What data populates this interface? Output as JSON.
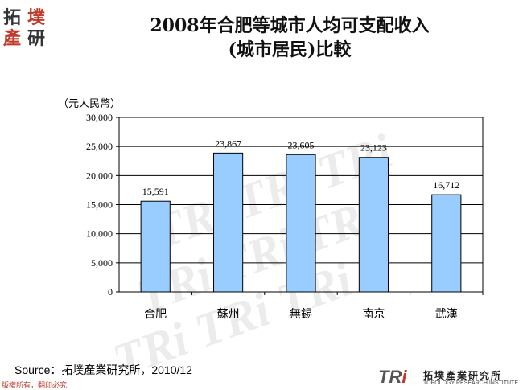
{
  "header": {
    "title_line1": "2008年合肥等城市人均可支配收入",
    "title_line2": "(城市居民)比較"
  },
  "logo": {
    "chars": [
      "拓",
      "墣",
      "產",
      "研"
    ]
  },
  "chart_data": {
    "type": "bar",
    "categories": [
      "合肥",
      "蘇州",
      "無錫",
      "南京",
      "武漢"
    ],
    "values": [
      15591,
      23867,
      23605,
      23123,
      16712
    ],
    "value_labels": [
      "15,591",
      "23,867",
      "23,605",
      "23,123",
      "16,712"
    ],
    "ylabel": "（元人民幣）",
    "ylim": [
      0,
      30000
    ],
    "yticks": [
      0,
      5000,
      10000,
      15000,
      20000,
      25000,
      30000
    ],
    "ytick_labels": [
      "0",
      "5,000",
      "10,000",
      "15,000",
      "20,000",
      "25,000",
      "30,000"
    ],
    "grid": true,
    "bar_color": "#99ccff",
    "bar_border": "#000000"
  },
  "footer": {
    "source": "Source：拓墣產業研究所，2010/12",
    "copyright": "版權所有，翻印必究",
    "brand_tri": "TR",
    "brand_i": "i",
    "brand_cn": "拓墣產業研究所",
    "brand_en": "TOPOLOGY RESEARCH INSTITUTE"
  },
  "colors": {
    "accent_red": "#c0392b",
    "watermark": "#e6e6e6"
  }
}
